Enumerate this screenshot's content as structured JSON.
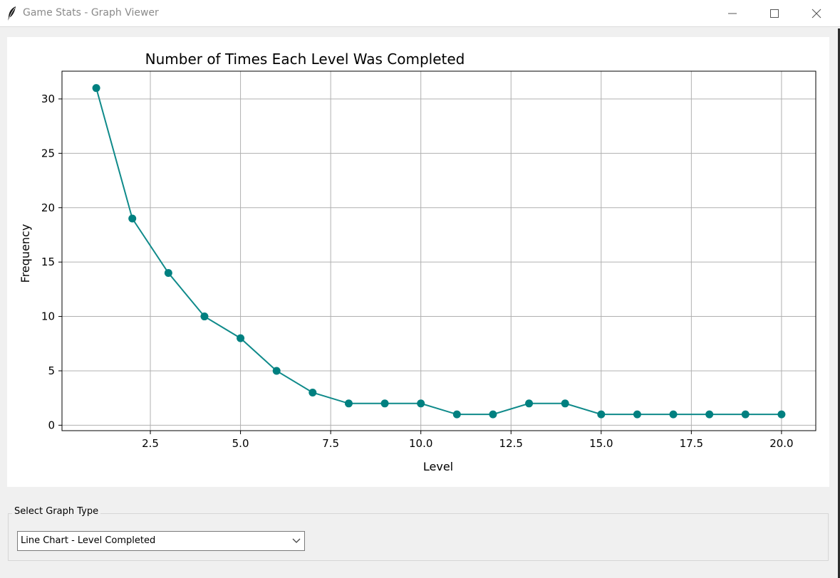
{
  "window": {
    "title": "Game Stats - Graph Viewer",
    "icon": "feather-icon"
  },
  "controls": {
    "frame_label": "Select Graph Type",
    "graph_type_selected": "Line Chart - Level Completed"
  },
  "colors": {
    "series": "#0f8a8a",
    "marker": "#008080"
  },
  "chart_data": {
    "type": "line",
    "title": "Number of Times Each Level Was Completed",
    "xlabel": "Level",
    "ylabel": "Frequency",
    "x": [
      1,
      2,
      3,
      4,
      5,
      6,
      7,
      8,
      9,
      10,
      11,
      12,
      13,
      14,
      15,
      16,
      17,
      18,
      19,
      20
    ],
    "series": [
      {
        "values": [
          31,
          19,
          14,
          10,
          8,
          5,
          3,
          2,
          2,
          2,
          1,
          1,
          2,
          2,
          1,
          1,
          1,
          1,
          1,
          1
        ]
      }
    ],
    "xlim": [
      0.05,
      20.95
    ],
    "ylim": [
      -0.5,
      32.55
    ],
    "xticks": [
      2.5,
      5.0,
      7.5,
      10.0,
      12.5,
      15.0,
      17.5,
      20.0
    ],
    "xtick_labels": [
      "2.5",
      "5.0",
      "7.5",
      "10.0",
      "12.5",
      "15.0",
      "17.5",
      "20.0"
    ],
    "yticks": [
      0,
      5,
      10,
      15,
      20,
      25,
      30
    ],
    "ytick_labels": [
      "0",
      "5",
      "10",
      "15",
      "20",
      "25",
      "30"
    ],
    "grid": true,
    "marker": "circle"
  }
}
